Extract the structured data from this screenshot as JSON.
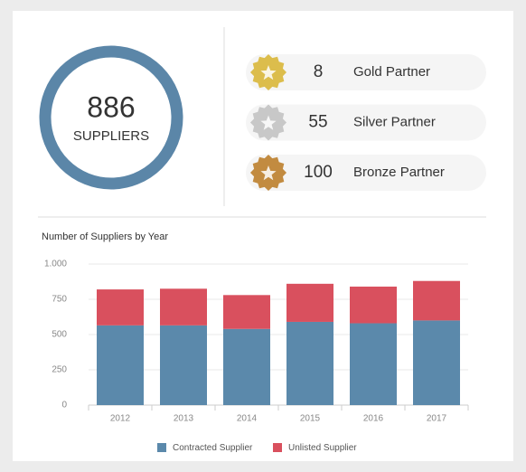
{
  "kpi": {
    "value": 886,
    "label": "SUPPLIERS"
  },
  "partners": [
    {
      "count": 8,
      "label": "Gold Partner",
      "color": "#dcbd4c"
    },
    {
      "count": 55,
      "label": "Silver Partner",
      "color": "#c8c8c8"
    },
    {
      "count": 100,
      "label": "Bronze Partner",
      "color": "#c28b40"
    }
  ],
  "chart_data": {
    "type": "bar",
    "stacked": true,
    "title": "Number of Suppliers by Year",
    "categories": [
      "2012",
      "2013",
      "2014",
      "2015",
      "2016",
      "2017"
    ],
    "series": [
      {
        "name": "Contracted Supplier",
        "color": "#5b89ab",
        "values": [
          565,
          565,
          540,
          590,
          580,
          600
        ]
      },
      {
        "name": "Unlisted Supplier",
        "color": "#d9505e",
        "values": [
          255,
          260,
          240,
          270,
          260,
          280
        ]
      }
    ],
    "ylim": [
      0,
      1000
    ],
    "yticks": [
      0,
      250,
      500,
      750,
      {
        "value": 1000,
        "label": "1.000"
      }
    ],
    "grid": true,
    "legend": "bottom"
  }
}
